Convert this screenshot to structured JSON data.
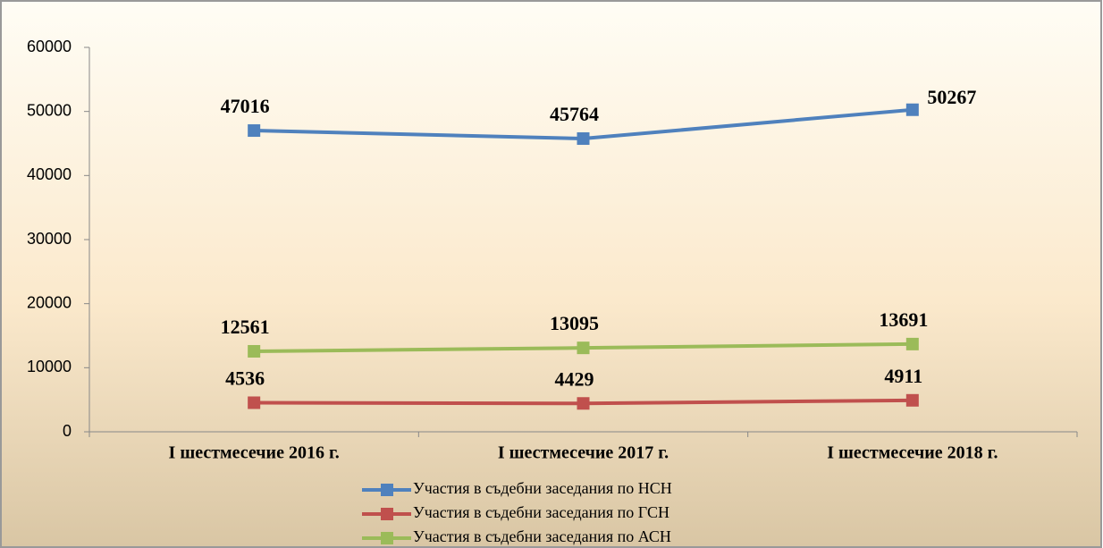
{
  "chart_data": {
    "type": "line",
    "categories": [
      "I шестмесечие 2016 г.",
      "I шестмесечие 2017 г.",
      "I шестмесечие 2018 г."
    ],
    "series": [
      {
        "name": "Участия в съдебни заседания по НСН",
        "color": "#4f81bd",
        "values": [
          47016,
          45764,
          50267
        ]
      },
      {
        "name": "Участия в съдебни заседания по ГСН",
        "color": "#c0504d",
        "values": [
          4536,
          4429,
          4911
        ]
      },
      {
        "name": "Участия в съдебни заседания по АСН",
        "color": "#9bbb59",
        "values": [
          12561,
          13095,
          13691
        ]
      }
    ],
    "ylim": [
      0,
      60000
    ],
    "yticks": [
      0,
      10000,
      20000,
      30000,
      40000,
      50000,
      60000
    ],
    "grid": false,
    "legend": "bottom"
  }
}
